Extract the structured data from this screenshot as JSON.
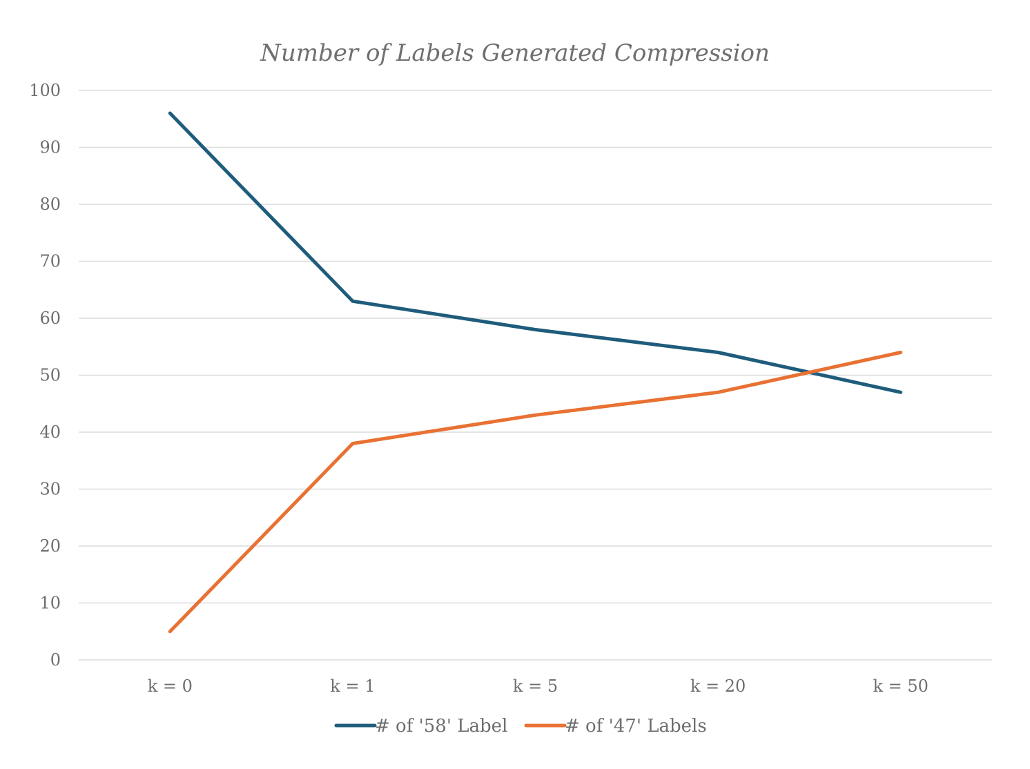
{
  "chart_data": {
    "type": "line",
    "title": "Number of Labels Generated Compression",
    "xlabel": "",
    "ylabel": "",
    "categories": [
      "k = 0",
      "k = 1",
      "k = 5",
      "k = 20",
      "k = 50"
    ],
    "ylim": [
      0,
      100
    ],
    "yticks": [
      0,
      10,
      20,
      30,
      40,
      50,
      60,
      70,
      80,
      90,
      100
    ],
    "grid": true,
    "legend_position": "bottom",
    "series": [
      {
        "name": "# of '58' Label",
        "values": [
          96,
          63,
          58,
          54,
          47
        ],
        "color": "#1f5c7c"
      },
      {
        "name": "# of '47' Labels",
        "values": [
          5,
          38,
          43,
          47,
          54
        ],
        "color": "#e87133"
      }
    ]
  }
}
